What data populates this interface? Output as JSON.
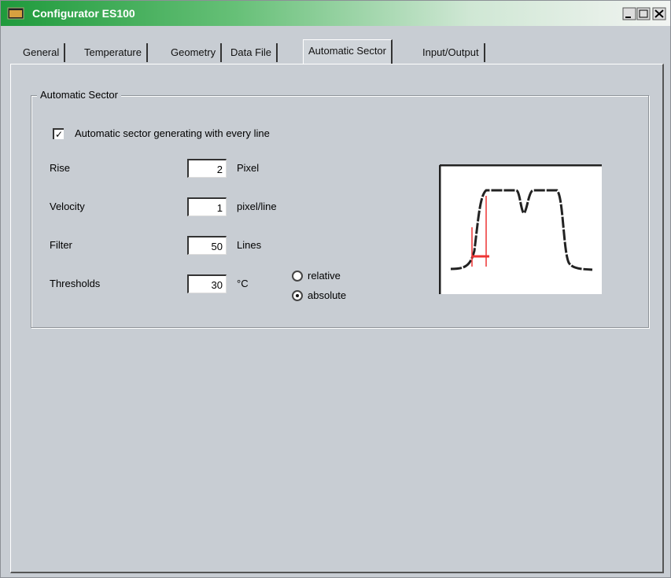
{
  "window": {
    "title": "Configurator ES100"
  },
  "tabs": {
    "items": [
      "General",
      "Temperature",
      "Geometry",
      "Data File",
      "Automatic Sector",
      "Input/Output"
    ],
    "active": 4
  },
  "group": {
    "title": "Automatic Sector",
    "checkbox": {
      "label": "Automatic sector generating with every line",
      "checked": true
    },
    "fields": [
      {
        "label": "Rise",
        "value": 2,
        "unit": "Pixel"
      },
      {
        "label": "Velocity",
        "value": 1,
        "unit": "pixel/line"
      },
      {
        "label": "Filter",
        "value": 50,
        "unit": "Lines"
      },
      {
        "label": "Thresholds",
        "value": 30,
        "unit": "°C"
      }
    ],
    "radios": [
      {
        "label": "relative",
        "selected": false
      },
      {
        "label": "absolute",
        "selected": true
      }
    ]
  }
}
